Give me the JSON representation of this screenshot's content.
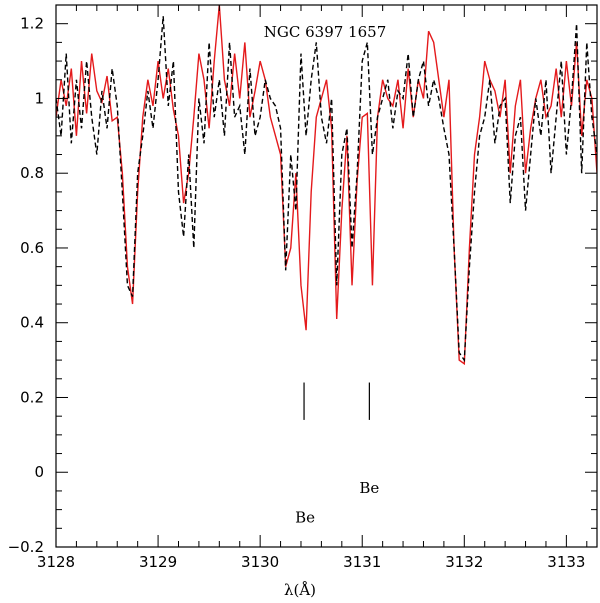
{
  "chart_data": {
    "type": "line",
    "title": "NGC 6397 1657",
    "xlabel": "λ(Å)",
    "ylabel": "",
    "xlim": [
      3128.0,
      3133.3
    ],
    "ylim": [
      -0.2,
      1.25
    ],
    "grid": false,
    "x_ticks": [
      {
        "value": 3128,
        "label": "3128"
      },
      {
        "value": 3129,
        "label": "3129"
      },
      {
        "value": 3130,
        "label": "3130"
      },
      {
        "value": 3131,
        "label": "3131"
      },
      {
        "value": 3132,
        "label": "3132"
      },
      {
        "value": 3133,
        "label": "3133"
      }
    ],
    "y_ticks": [
      {
        "value": -0.2,
        "label": "−0.2"
      },
      {
        "value": 0,
        "label": "0"
      },
      {
        "value": 0.2,
        "label": "0.2"
      },
      {
        "value": 0.4,
        "label": "0.4"
      },
      {
        "value": 0.6,
        "label": "0.6"
      },
      {
        "value": 0.8,
        "label": "0.8"
      },
      {
        "value": 1,
        "label": "1"
      },
      {
        "value": 1.2,
        "label": "1.2"
      }
    ],
    "series": [
      {
        "style": "solid",
        "color": "#e41a1c",
        "x": [
          3128.0,
          3128.05,
          3128.1,
          3128.15,
          3128.2,
          3128.25,
          3128.3,
          3128.35,
          3128.4,
          3128.45,
          3128.5,
          3128.55,
          3128.6,
          3128.65,
          3128.7,
          3128.75,
          3128.8,
          3128.85,
          3128.9,
          3128.95,
          3129.0,
          3129.05,
          3129.1,
          3129.15,
          3129.2,
          3129.25,
          3129.3,
          3129.35,
          3129.4,
          3129.45,
          3129.5,
          3129.55,
          3129.6,
          3129.65,
          3129.7,
          3129.75,
          3129.8,
          3129.85,
          3129.9,
          3129.95,
          3130.0,
          3130.05,
          3130.1,
          3130.15,
          3130.2,
          3130.25,
          3130.3,
          3130.35,
          3130.4,
          3130.45,
          3130.5,
          3130.55,
          3130.6,
          3130.65,
          3130.7,
          3130.75,
          3130.8,
          3130.85,
          3130.9,
          3130.95,
          3131.0,
          3131.05,
          3131.1,
          3131.15,
          3131.2,
          3131.25,
          3131.3,
          3131.35,
          3131.4,
          3131.45,
          3131.5,
          3131.55,
          3131.6,
          3131.65,
          3131.7,
          3131.75,
          3131.8,
          3131.85,
          3131.9,
          3131.95,
          3132.0,
          3132.05,
          3132.1,
          3132.15,
          3132.2,
          3132.25,
          3132.3,
          3132.35,
          3132.4,
          3132.45,
          3132.5,
          3132.55,
          3132.6,
          3132.65,
          3132.7,
          3132.75,
          3132.8,
          3132.85,
          3132.9,
          3132.95,
          3133.0,
          3133.05,
          3133.1,
          3133.15,
          3133.2,
          3133.25,
          3133.3
        ],
        "y": [
          0.95,
          1.05,
          0.98,
          1.08,
          0.9,
          1.1,
          0.96,
          1.12,
          1.02,
          0.99,
          1.06,
          0.94,
          0.95,
          0.8,
          0.55,
          0.45,
          0.75,
          0.95,
          1.05,
          0.98,
          1.1,
          1.0,
          1.08,
          0.97,
          0.9,
          0.72,
          0.8,
          0.95,
          1.12,
          1.05,
          0.92,
          1.1,
          1.25,
          1.05,
          0.98,
          1.12,
          1.0,
          1.15,
          0.95,
          1.02,
          1.1,
          1.05,
          0.95,
          0.9,
          0.85,
          0.55,
          0.6,
          0.8,
          0.5,
          0.38,
          0.75,
          0.95,
          1.0,
          1.05,
          0.92,
          0.41,
          0.7,
          0.9,
          0.5,
          0.78,
          0.95,
          0.96,
          0.5,
          0.95,
          1.05,
          1.0,
          0.98,
          1.05,
          0.92,
          1.08,
          0.95,
          1.05,
          1.0,
          1.18,
          1.15,
          1.05,
          0.95,
          1.05,
          0.6,
          0.3,
          0.29,
          0.6,
          0.85,
          0.95,
          1.1,
          1.05,
          1.02,
          0.95,
          1.05,
          0.8,
          0.98,
          1.05,
          0.8,
          0.92,
          1.0,
          1.05,
          0.95,
          0.98,
          1.08,
          0.95,
          1.1,
          0.98,
          1.15,
          0.9,
          1.05,
          1.0,
          0.8
        ]
      },
      {
        "style": "dashed",
        "color": "#000000",
        "x": [
          3128.0,
          3128.05,
          3128.1,
          3128.15,
          3128.2,
          3128.25,
          3128.3,
          3128.35,
          3128.4,
          3128.45,
          3128.5,
          3128.55,
          3128.6,
          3128.65,
          3128.7,
          3128.75,
          3128.8,
          3128.85,
          3128.9,
          3128.95,
          3129.0,
          3129.05,
          3129.1,
          3129.15,
          3129.2,
          3129.25,
          3129.3,
          3129.35,
          3129.4,
          3129.45,
          3129.5,
          3129.55,
          3129.6,
          3129.65,
          3129.7,
          3129.75,
          3129.8,
          3129.85,
          3129.9,
          3129.95,
          3130.0,
          3130.05,
          3130.1,
          3130.15,
          3130.2,
          3130.25,
          3130.3,
          3130.35,
          3130.4,
          3130.45,
          3130.5,
          3130.55,
          3130.6,
          3130.65,
          3130.7,
          3130.75,
          3130.8,
          3130.85,
          3130.9,
          3130.95,
          3131.0,
          3131.05,
          3131.1,
          3131.15,
          3131.2,
          3131.25,
          3131.3,
          3131.35,
          3131.4,
          3131.45,
          3131.5,
          3131.55,
          3131.6,
          3131.65,
          3131.7,
          3131.75,
          3131.8,
          3131.85,
          3131.9,
          3131.95,
          3132.0,
          3132.05,
          3132.1,
          3132.15,
          3132.2,
          3132.25,
          3132.3,
          3132.35,
          3132.4,
          3132.45,
          3132.5,
          3132.55,
          3132.6,
          3132.65,
          3132.7,
          3132.75,
          3132.8,
          3132.85,
          3132.9,
          3132.95,
          3133.0,
          3133.05,
          3133.1,
          3133.15,
          3133.2,
          3133.25,
          3133.3
        ],
        "y": [
          1.0,
          0.9,
          1.12,
          0.88,
          1.05,
          0.92,
          1.1,
          0.95,
          0.85,
          1.02,
          0.92,
          1.08,
          0.98,
          0.75,
          0.5,
          0.47,
          0.8,
          0.9,
          1.02,
          0.92,
          1.05,
          1.22,
          0.98,
          1.1,
          0.75,
          0.63,
          0.85,
          0.6,
          1.0,
          0.88,
          1.15,
          0.95,
          1.05,
          0.9,
          1.15,
          0.95,
          0.98,
          0.85,
          1.08,
          0.9,
          0.95,
          1.05,
          1.0,
          0.98,
          0.92,
          0.54,
          0.85,
          0.7,
          1.12,
          0.9,
          1.05,
          1.15,
          0.95,
          0.88,
          1.0,
          0.5,
          0.85,
          0.92,
          0.6,
          0.8,
          1.1,
          1.15,
          0.85,
          0.95,
          1.0,
          1.05,
          0.92,
          1.02,
          1.0,
          1.12,
          0.95,
          1.05,
          1.1,
          0.98,
          1.05,
          1.0,
          0.92,
          0.85,
          0.6,
          0.32,
          0.3,
          0.55,
          0.75,
          0.9,
          0.95,
          1.05,
          0.88,
          0.98,
          1.0,
          0.72,
          0.9,
          0.95,
          0.7,
          0.85,
          1.0,
          0.9,
          1.05,
          0.8,
          0.95,
          1.1,
          0.85,
          1.0,
          1.2,
          0.8,
          1.15,
          0.95,
          0.85
        ]
      }
    ],
    "annotations": [
      {
        "type": "vline",
        "x": 3130.43,
        "y_from": 0.14,
        "y_to": 0.24
      },
      {
        "type": "vline",
        "x": 3131.07,
        "y_from": 0.14,
        "y_to": 0.24
      },
      {
        "type": "text",
        "text": "Be",
        "x": 3130.44,
        "y": -0.135
      },
      {
        "type": "text",
        "text": "Be",
        "x": 3131.07,
        "y": -0.055
      }
    ]
  }
}
